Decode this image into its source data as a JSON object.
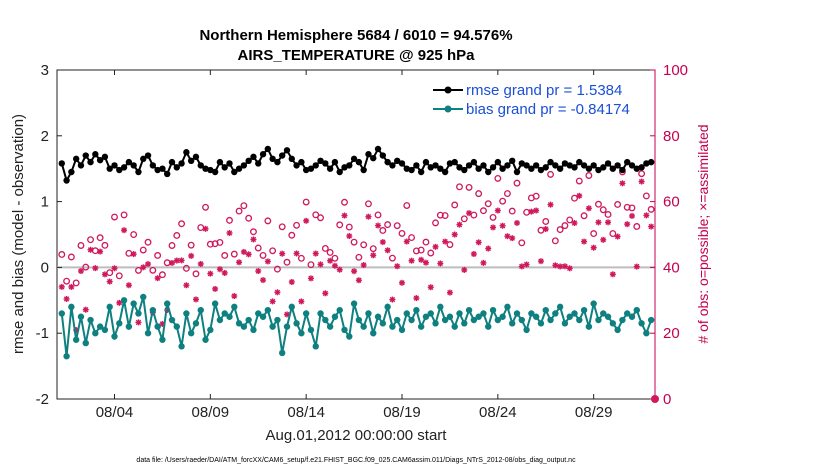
{
  "chart_data": {
    "type": "line",
    "title": "Northern Hemisphere 5684 / 6010 = 94.576%",
    "subtitle": "AIRS_TEMPERATURE @ 925 hPa",
    "ylabel": "rmse and bias (model - observation)",
    "y2label": "# of obs: o=possible; ×=assimilated",
    "xlabel": "Aug.01,2012 00:00:00 start",
    "footnote": "data file: /Users/raeder/DAI/ATM_forcXX/CAM6_setup/f.e21.FHIST_BGC.f09_025.CAM6assim.011/Diags_NTrS_2012-08/obs_diag_output.nc",
    "xlim": [
      1,
      32.2
    ],
    "ylim": [
      -2,
      3
    ],
    "y2lim": [
      0,
      100
    ],
    "xticks": [
      {
        "day": 4,
        "label": "08/04"
      },
      {
        "day": 9,
        "label": "08/09"
      },
      {
        "day": 14,
        "label": "08/14"
      },
      {
        "day": 19,
        "label": "08/19"
      },
      {
        "day": 24,
        "label": "08/24"
      },
      {
        "day": 29,
        "label": "08/29"
      }
    ],
    "yticks": [
      "-2",
      "-1",
      "0",
      "1",
      "2",
      "3"
    ],
    "y2ticks": [
      "0",
      "20",
      "40",
      "60",
      "80",
      "100"
    ],
    "series": [
      {
        "name": "rmse grand pr = 1.5384",
        "color": "#000000",
        "marker": "circle"
      },
      {
        "name": "bias grand pr = -0.84174",
        "color": "#0e8080",
        "marker": "circle"
      },
      {
        "name": "possible obs",
        "color": "#d0185c",
        "marker": "open-circle"
      },
      {
        "name": "assimilated obs",
        "color": "#d0185c",
        "marker": "asterisk"
      }
    ],
    "rmse_grand": 1.5384,
    "bias_grand": -0.84174,
    "rmse_anchor": [
      1.58,
      1.32,
      1.45,
      1.65,
      1.55,
      1.7,
      1.6,
      1.72,
      1.63,
      1.68,
      1.5,
      1.55,
      1.48,
      1.52,
      1.6,
      1.55,
      1.45,
      1.65,
      1.7,
      1.55,
      1.48,
      1.5,
      1.42,
      1.6,
      1.52,
      1.58,
      1.75,
      1.62,
      1.68,
      1.55,
      1.5,
      1.48,
      1.45,
      1.6,
      1.52,
      1.58,
      1.45,
      1.5,
      1.55,
      1.62,
      1.68,
      1.58,
      1.72,
      1.8,
      1.65,
      1.6,
      1.7,
      1.78,
      1.65,
      1.55,
      1.6,
      1.48,
      1.5,
      1.55,
      1.62,
      1.58,
      1.5,
      1.6,
      1.45,
      1.52,
      1.55,
      1.65,
      1.6,
      1.48,
      1.72,
      1.66,
      1.8,
      1.7,
      1.6,
      1.55,
      1.62,
      1.58,
      1.5,
      1.48,
      1.55,
      1.45,
      1.6,
      1.52,
      1.55,
      1.5,
      1.45,
      1.58,
      1.6,
      1.52,
      1.48,
      1.55,
      1.6,
      1.5,
      1.55,
      1.45,
      1.52,
      1.6,
      1.5,
      1.55,
      1.62,
      1.45,
      1.58,
      1.55,
      1.5,
      1.55,
      1.48,
      1.52,
      1.6,
      1.55,
      1.5,
      1.58,
      1.55,
      1.52,
      1.6,
      1.55,
      1.5,
      1.55,
      1.48,
      1.52,
      1.58,
      1.5,
      1.55,
      1.48,
      1.6,
      1.55,
      1.5,
      1.52,
      1.58,
      1.6,
      1.48,
      1.55
    ],
    "bias_anchor": [
      -0.7,
      -1.35,
      -0.6,
      -1.1,
      -0.75,
      -1.15,
      -0.8,
      -1.0,
      -0.9,
      -0.95,
      -0.6,
      -1.05,
      -0.85,
      -0.5,
      -0.9,
      -0.55,
      -0.7,
      -0.45,
      -1.0,
      -0.65,
      -0.9,
      -1.1,
      -0.55,
      -0.8,
      -0.9,
      -1.2,
      -0.7,
      -1.0,
      -0.85,
      -0.65,
      -1.1,
      -0.95,
      -0.55,
      -0.8,
      -0.7,
      -0.75,
      -0.6,
      -0.85,
      -0.9,
      -0.8,
      -0.95,
      -0.7,
      -0.75,
      -0.65,
      -0.9,
      -0.8,
      -1.3,
      -0.9,
      -0.6,
      -0.85,
      -1.0,
      -0.7,
      -0.95,
      -1.2,
      -0.7,
      -0.8,
      -0.9,
      -0.75,
      -0.65,
      -0.95,
      -1.05,
      -0.55,
      -0.8,
      -0.9,
      -0.7,
      -1.0,
      -0.75,
      -0.85,
      -0.6,
      -0.9,
      -0.8,
      -0.95,
      -0.7,
      -0.8,
      -0.65,
      -0.9,
      -0.75,
      -0.7,
      -0.85,
      -0.6,
      -0.8,
      -0.75,
      -0.9,
      -0.7,
      -0.85,
      -0.65,
      -0.8,
      -0.75,
      -0.7,
      -0.9,
      -0.65,
      -0.8,
      -0.75,
      -0.6,
      -0.85,
      -0.7,
      -0.8,
      -0.95,
      -0.7,
      -0.75,
      -0.85,
      -0.65,
      -0.8,
      -0.7,
      -0.6,
      -0.85,
      -0.75,
      -0.7,
      -0.8,
      -0.65,
      -0.9,
      -0.55,
      -0.8,
      -0.7,
      -0.75,
      -0.85,
      -0.95,
      -0.8,
      -0.7,
      -0.75,
      -0.65,
      -0.85,
      -1.0,
      -0.8,
      -0.75,
      -0.8
    ]
  },
  "legend": {
    "rmse_label": "rmse grand pr = 1.5384",
    "bias_label": "bias grand pr = -0.84174"
  }
}
